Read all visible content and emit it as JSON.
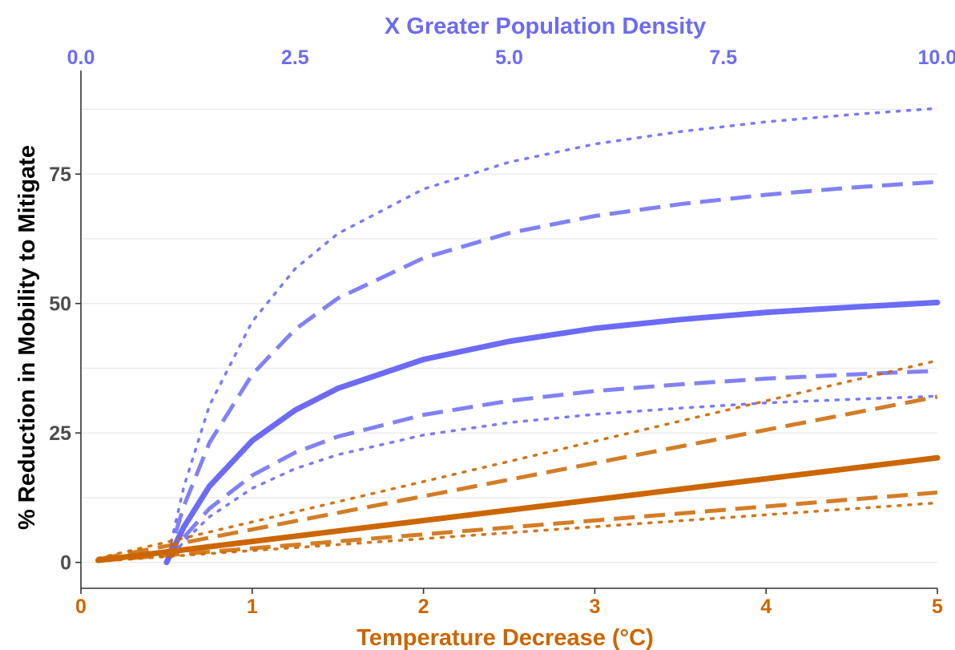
{
  "colors": {
    "temperature": "#cc6600",
    "density": "#6b6bf5",
    "grid": "#ebebeb",
    "axis": "#333333",
    "ytick": "#4d4d4d"
  },
  "chart_data": {
    "type": "line",
    "xlabel": "Temperature Decrease (°C)",
    "x2label": "X Greater Population Density",
    "ylabel": "% Reduction in Mobility to Mitigate",
    "xlim": [
      0,
      5
    ],
    "x2lim": [
      0,
      10
    ],
    "ylim": [
      -5,
      95
    ],
    "x_ticks": [
      0,
      1,
      2,
      3,
      4,
      5
    ],
    "x_tick_labels": [
      "0",
      "1",
      "2",
      "3",
      "4",
      "5"
    ],
    "x2_ticks": [
      0,
      2.5,
      5,
      7.5,
      10
    ],
    "x2_tick_labels": [
      "0.0",
      "2.5",
      "5.0",
      "7.5",
      "10.0"
    ],
    "y_ticks": [
      0,
      25,
      50,
      75
    ],
    "y_tick_labels": [
      "0",
      "25",
      "50",
      "75"
    ],
    "grid": true,
    "series": [
      {
        "axis": "x2",
        "linetype": "dotted",
        "x": [
          1,
          1.2,
          1.5,
          2,
          2.5,
          3,
          4,
          5,
          6,
          7,
          8,
          9,
          10
        ],
        "y": [
          0,
          14.5,
          30.3,
          46.5,
          56.7,
          63.5,
          72.1,
          77.3,
          80.8,
          83.2,
          85.1,
          86.5,
          87.7
        ]
      },
      {
        "axis": "x2",
        "linetype": "dashed",
        "x": [
          1,
          1.2,
          1.5,
          2,
          2.5,
          3,
          4,
          5,
          6,
          7,
          8,
          9,
          10
        ],
        "y": [
          0,
          10.8,
          23.1,
          36.3,
          45.0,
          51.0,
          58.8,
          63.6,
          66.9,
          69.2,
          71.0,
          72.4,
          73.5
        ]
      },
      {
        "axis": "x2",
        "linetype": "solid",
        "x": [
          1,
          1.2,
          1.5,
          2,
          2.5,
          3,
          4,
          5,
          6,
          7,
          8,
          9,
          10
        ],
        "y": [
          0,
          6.8,
          14.7,
          23.5,
          29.4,
          33.6,
          39.2,
          42.7,
          45.2,
          46.9,
          48.3,
          49.3,
          50.2
        ]
      },
      {
        "axis": "x2",
        "linetype": "dashed",
        "x": [
          1,
          1.2,
          1.5,
          2,
          2.5,
          3,
          4,
          5,
          6,
          7,
          8,
          9,
          10
        ],
        "y": [
          0,
          4.8,
          10.4,
          16.8,
          21.2,
          24.3,
          28.5,
          31.2,
          33.1,
          34.4,
          35.5,
          36.3,
          37.0
        ]
      },
      {
        "axis": "x2",
        "linetype": "dotted",
        "x": [
          1,
          1.2,
          1.5,
          2,
          2.5,
          3,
          4,
          5,
          6,
          7,
          8,
          9,
          10
        ],
        "y": [
          0,
          4.0,
          8.8,
          14.3,
          18.1,
          20.8,
          24.6,
          27.0,
          28.6,
          29.8,
          30.8,
          31.5,
          32.1
        ]
      },
      {
        "axis": "x",
        "linetype": "dotted",
        "x": [
          0.1,
          5
        ],
        "y": [
          0.8,
          39
        ]
      },
      {
        "axis": "x",
        "linetype": "dashed",
        "x": [
          0.1,
          5
        ],
        "y": [
          0.6,
          32
        ]
      },
      {
        "axis": "x",
        "linetype": "solid",
        "x": [
          0.1,
          5
        ],
        "y": [
          0.4,
          20.2
        ]
      },
      {
        "axis": "x",
        "linetype": "dashed",
        "x": [
          0.1,
          5
        ],
        "y": [
          0.3,
          13.5
        ]
      },
      {
        "axis": "x",
        "linetype": "dotted",
        "x": [
          0.1,
          5
        ],
        "y": [
          0.2,
          11.5
        ]
      }
    ]
  }
}
